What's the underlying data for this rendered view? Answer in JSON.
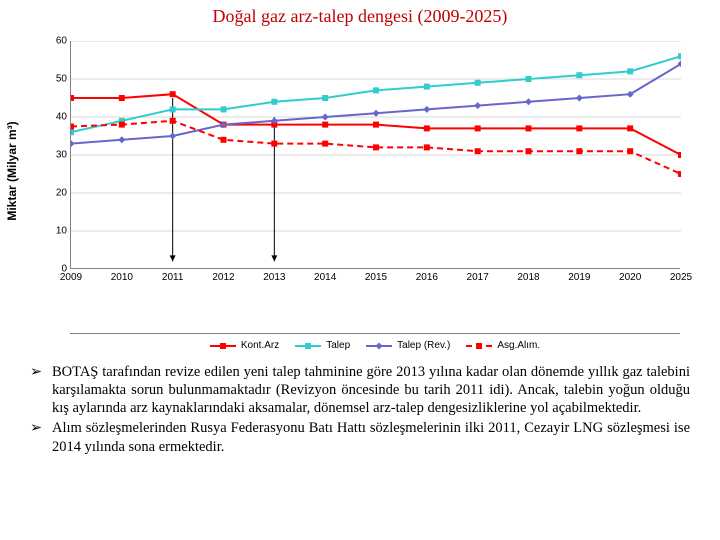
{
  "title": "Doğal gaz  arz-talep dengesi (2009-2025)",
  "title_color": "#c00000",
  "ylabel": "Miktar (Milyar m³)",
  "chart": {
    "type": "line",
    "xlim": [
      2009,
      2025
    ],
    "ylim": [
      0,
      60
    ],
    "ytick_step": 10,
    "grid_color": "#d9d9d9",
    "axis_color": "#808080",
    "years": [
      2009,
      2010,
      2011,
      2012,
      2013,
      2014,
      2015,
      2016,
      2017,
      2018,
      2019,
      2020,
      2025
    ],
    "series": [
      {
        "id": "kont_arz",
        "label": "Kont. Arz",
        "color": "#ff0000",
        "dash": null,
        "marker": "square",
        "values": [
          45,
          45,
          46,
          38,
          38,
          38,
          38,
          37,
          37,
          37,
          37,
          37,
          30
        ]
      },
      {
        "id": "talep",
        "label": "Talep",
        "color": "#33cccc",
        "dash": null,
        "marker": "square",
        "values": [
          36,
          39,
          42,
          42,
          44,
          45,
          47,
          48,
          49,
          50,
          51,
          52,
          56
        ]
      },
      {
        "id": "talep_rev",
        "label": "Talep (Rev.)",
        "color": "#6666cc",
        "dash": null,
        "marker": "diamond",
        "values": [
          33,
          34,
          35,
          38,
          39,
          40,
          41,
          42,
          43,
          44,
          45,
          46,
          54
        ]
      },
      {
        "id": "asg_alim",
        "label": "Asg. Alım.",
        "color": "#ff0000",
        "dash": "6,4",
        "marker": "square",
        "values": [
          37.5,
          38,
          39,
          34,
          33,
          33,
          32,
          32,
          31,
          31,
          31,
          31,
          25
        ]
      }
    ],
    "arrows": [
      {
        "x": 2011,
        "y_from": 45,
        "y_to": 2
      },
      {
        "x": 2013,
        "y_from": 40,
        "y_to": 2
      }
    ]
  },
  "legend_labels": {
    "kont_arz": "Kont.Arz",
    "talep": "Talep",
    "talep_rev": "Talep (Rev.)",
    "asg_alim": "Asg.Alım."
  },
  "bullets": [
    "BOTAŞ tarafından revize edilen yeni talep tahminine göre 2013 yılına kadar olan dönemde yıllık gaz talebini karşılamakta sorun bulunmamaktadır (Revizyon öncesinde bu tarih 2011 idi). Ancak, talebin yoğun olduğu kış aylarında arz kaynaklarındaki aksamalar, dönemsel arz-talep dengesizliklerine yol açabilmektedir.",
    "Alım sözleşmelerinden Rusya Federasyonu Batı Hattı sözleşmelerinin ilki 2011, Cezayir LNG sözleşmesi ise 2014 yılında sona ermektedir."
  ]
}
